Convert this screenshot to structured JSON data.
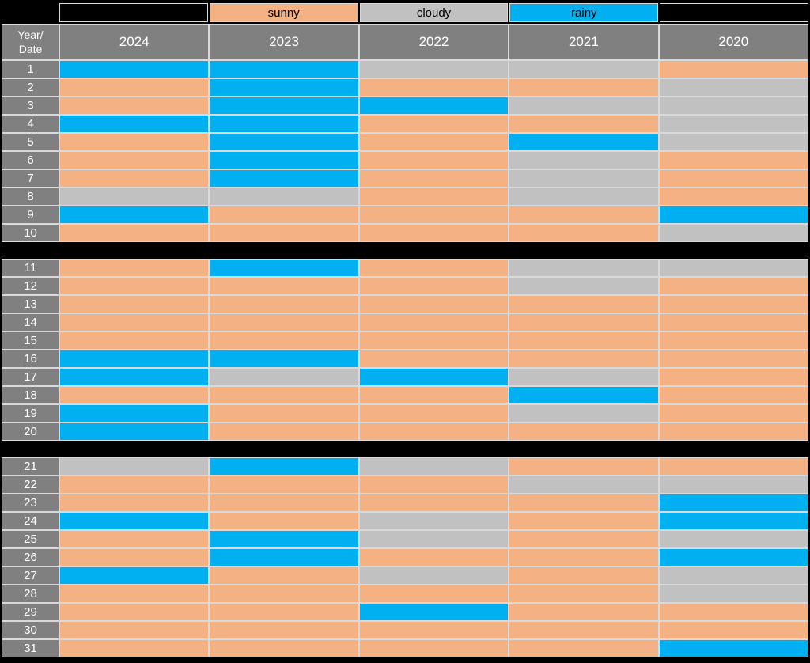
{
  "page": {
    "background": "#000000"
  },
  "colors": {
    "sunny": "#F4B183",
    "cloudy": "#C1C1C1",
    "rainy": "#00B0F0",
    "header_bg": "#808080",
    "header_text": "#FFFFFF",
    "legend_text": "#000000",
    "gridline": "#D9D9D9",
    "empty_cell": "#000000"
  },
  "legend": {
    "items": [
      {
        "key": "sunny",
        "label": "sunny"
      },
      {
        "key": "cloudy",
        "label": "cloudy"
      },
      {
        "key": "rainy",
        "label": "rainy"
      }
    ]
  },
  "header": {
    "corner_label": "Year/\nDate",
    "years": [
      "2024",
      "2023",
      "2022",
      "2021",
      "2020"
    ]
  },
  "chart_data": {
    "type": "table",
    "title": "",
    "row_header": "Year/Date",
    "columns": [
      "2024",
      "2023",
      "2022",
      "2021",
      "2020"
    ],
    "legend_entries": [
      "sunny",
      "cloudy",
      "rainy"
    ],
    "sections": [
      [
        1,
        10
      ],
      [
        11,
        20
      ],
      [
        21,
        31
      ]
    ],
    "rows": [
      {
        "date": "1",
        "values": [
          "rainy",
          "rainy",
          "cloudy",
          "cloudy",
          "sunny"
        ]
      },
      {
        "date": "2",
        "values": [
          "sunny",
          "rainy",
          "sunny",
          "sunny",
          "cloudy"
        ]
      },
      {
        "date": "3",
        "values": [
          "sunny",
          "rainy",
          "rainy",
          "cloudy",
          "cloudy"
        ]
      },
      {
        "date": "4",
        "values": [
          "rainy",
          "rainy",
          "sunny",
          "sunny",
          "cloudy"
        ]
      },
      {
        "date": "5",
        "values": [
          "sunny",
          "rainy",
          "sunny",
          "rainy",
          "cloudy"
        ]
      },
      {
        "date": "6",
        "values": [
          "sunny",
          "rainy",
          "sunny",
          "cloudy",
          "sunny"
        ]
      },
      {
        "date": "7",
        "values": [
          "sunny",
          "rainy",
          "sunny",
          "cloudy",
          "sunny"
        ]
      },
      {
        "date": "8",
        "values": [
          "cloudy",
          "cloudy",
          "sunny",
          "cloudy",
          "sunny"
        ]
      },
      {
        "date": "9",
        "values": [
          "rainy",
          "sunny",
          "sunny",
          "sunny",
          "rainy"
        ]
      },
      {
        "date": "10",
        "values": [
          "sunny",
          "sunny",
          "sunny",
          "sunny",
          "cloudy"
        ]
      },
      {
        "date": "11",
        "values": [
          "sunny",
          "rainy",
          "sunny",
          "cloudy",
          "cloudy"
        ]
      },
      {
        "date": "12",
        "values": [
          "sunny",
          "sunny",
          "sunny",
          "cloudy",
          "sunny"
        ]
      },
      {
        "date": "13",
        "values": [
          "sunny",
          "sunny",
          "sunny",
          "sunny",
          "sunny"
        ]
      },
      {
        "date": "14",
        "values": [
          "sunny",
          "sunny",
          "sunny",
          "sunny",
          "sunny"
        ]
      },
      {
        "date": "15",
        "values": [
          "sunny",
          "sunny",
          "sunny",
          "sunny",
          "sunny"
        ]
      },
      {
        "date": "16",
        "values": [
          "rainy",
          "rainy",
          "sunny",
          "sunny",
          "sunny"
        ]
      },
      {
        "date": "17",
        "values": [
          "rainy",
          "cloudy",
          "rainy",
          "cloudy",
          "sunny"
        ]
      },
      {
        "date": "18",
        "values": [
          "sunny",
          "sunny",
          "sunny",
          "rainy",
          "sunny"
        ]
      },
      {
        "date": "19",
        "values": [
          "rainy",
          "sunny",
          "sunny",
          "cloudy",
          "sunny"
        ]
      },
      {
        "date": "20",
        "values": [
          "rainy",
          "sunny",
          "sunny",
          "sunny",
          "sunny"
        ]
      },
      {
        "date": "21",
        "values": [
          "cloudy",
          "rainy",
          "cloudy",
          "sunny",
          "sunny"
        ]
      },
      {
        "date": "22",
        "values": [
          "sunny",
          "sunny",
          "sunny",
          "cloudy",
          "cloudy"
        ]
      },
      {
        "date": "23",
        "values": [
          "sunny",
          "sunny",
          "sunny",
          "sunny",
          "rainy"
        ]
      },
      {
        "date": "24",
        "values": [
          "rainy",
          "sunny",
          "cloudy",
          "sunny",
          "rainy"
        ]
      },
      {
        "date": "25",
        "values": [
          "sunny",
          "rainy",
          "cloudy",
          "sunny",
          "cloudy"
        ]
      },
      {
        "date": "26",
        "values": [
          "sunny",
          "rainy",
          "sunny",
          "sunny",
          "rainy"
        ]
      },
      {
        "date": "27",
        "values": [
          "rainy",
          "sunny",
          "cloudy",
          "sunny",
          "cloudy"
        ]
      },
      {
        "date": "28",
        "values": [
          "sunny",
          "sunny",
          "sunny",
          "sunny",
          "cloudy"
        ]
      },
      {
        "date": "29",
        "values": [
          "sunny",
          "sunny",
          "rainy",
          "sunny",
          "sunny"
        ]
      },
      {
        "date": "30",
        "values": [
          "sunny",
          "sunny",
          "sunny",
          "sunny",
          "sunny"
        ]
      },
      {
        "date": "31",
        "values": [
          "sunny",
          "sunny",
          "sunny",
          "sunny",
          "rainy"
        ]
      }
    ]
  }
}
